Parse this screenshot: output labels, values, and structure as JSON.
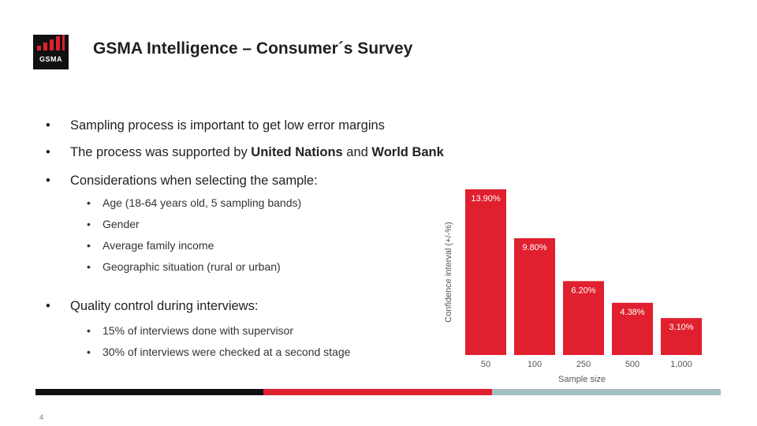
{
  "logo": {
    "text": "GSMA"
  },
  "title": "GSMA Intelligence – Consumer´s Survey",
  "bullets": {
    "b1": "Sampling process is important to get low error margins",
    "b2_pre": "The process was supported by ",
    "b2_b1": "United Nations",
    "b2_mid": " and ",
    "b2_b2": "World Bank",
    "b3": "Considerations when selecting the sample:",
    "b3_subs": [
      "Age (18-64 years old, 5 sampling bands)",
      "Gender",
      "Average family income",
      "Geographic situation (rural or urban)"
    ],
    "b4": "Quality control during interviews:",
    "b4_subs": [
      "15% of interviews done with supervisor",
      "30% of interviews were checked at a second stage"
    ]
  },
  "bullet_char": "•",
  "chart_data": {
    "type": "bar",
    "categories": [
      "50",
      "100",
      "250",
      "500",
      "1,000"
    ],
    "values": [
      13.9,
      9.8,
      6.2,
      4.38,
      3.1
    ],
    "data_labels": [
      "13.90%",
      "9.80%",
      "6.20%",
      "4.38%",
      "3.10%"
    ],
    "xlabel": "Sample size",
    "ylabel": "Confidence interval (+/-%)",
    "ylim": [
      0,
      13.9
    ],
    "color": "#e0202e"
  },
  "colors": {
    "brand_red": "#e0202e",
    "footer_black": "#111111",
    "footer_teal": "#a3bfbf"
  },
  "page_number": "4"
}
